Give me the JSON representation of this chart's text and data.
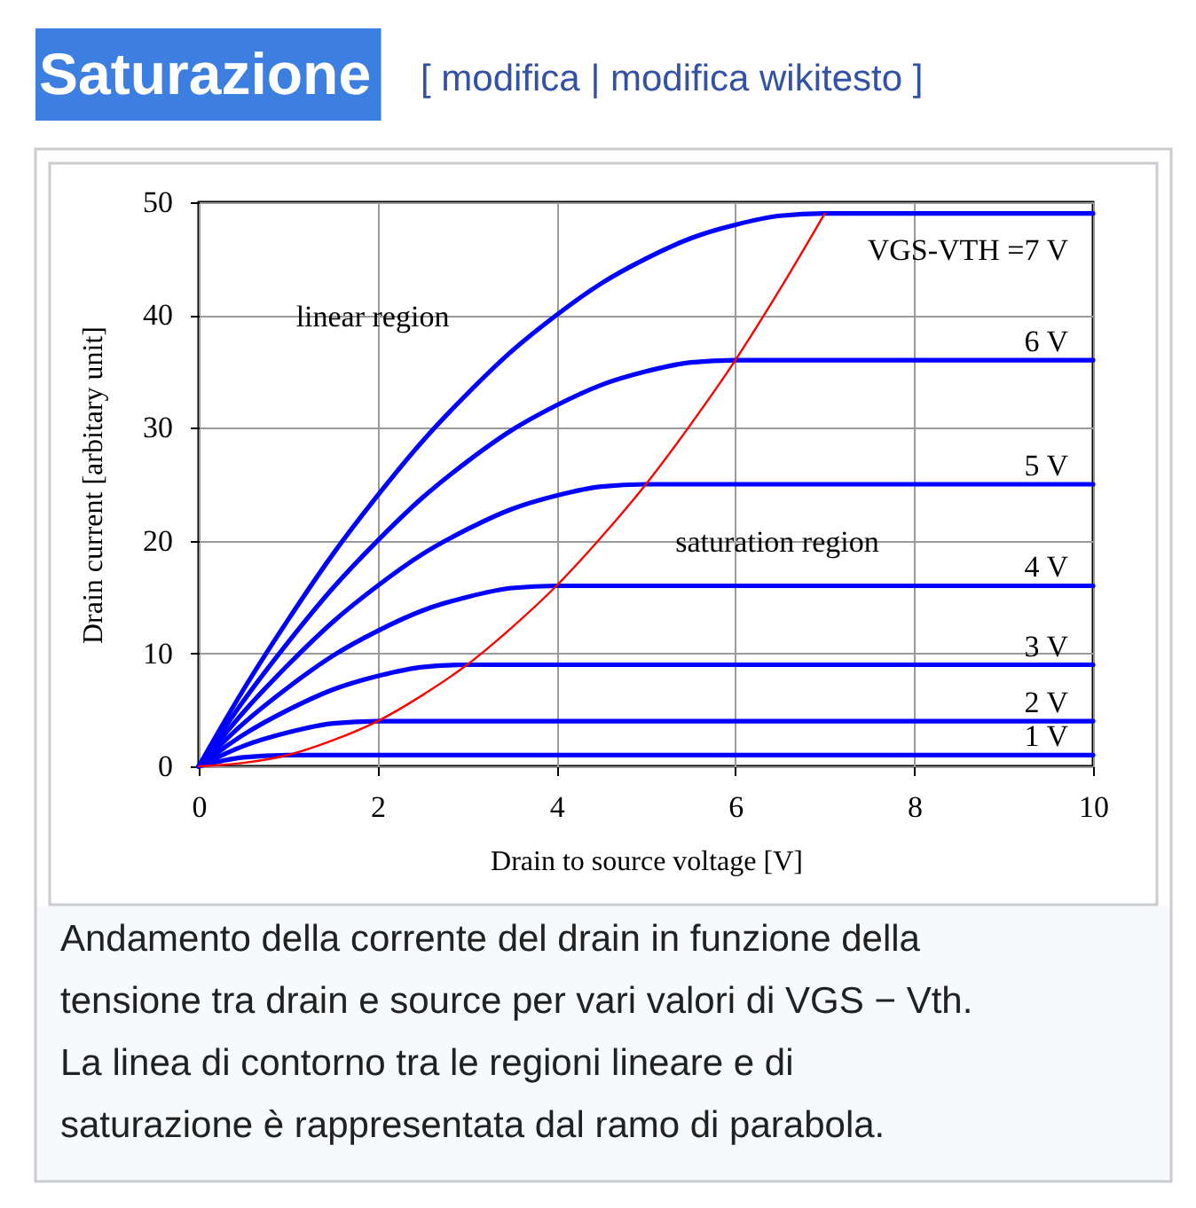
{
  "chart_data": {
    "type": "line",
    "title": "Saturazione",
    "subtitle": "[ modifica | modifica wikitesto ]",
    "xlabel": "Drain to source voltage [V]",
    "ylabel": "Drain current [arbitary unit]",
    "xlim": [
      0,
      10
    ],
    "ylim": [
      0,
      50
    ],
    "xticks": [
      0,
      2,
      4,
      6,
      8,
      10
    ],
    "yticks": [
      0,
      10,
      20,
      30,
      40,
      50
    ],
    "grid": true,
    "series": [
      {
        "name": "VGS-VTH =7 V",
        "color": "#0000ff",
        "x": [
          0,
          0.5,
          1,
          1.5,
          2,
          2.5,
          3,
          3.5,
          4,
          4.5,
          5,
          5.5,
          6,
          6.5,
          7,
          10
        ],
        "values": [
          0,
          6.8,
          13,
          18.8,
          24,
          28.8,
          33,
          36.8,
          40,
          42.8,
          45,
          46.8,
          48,
          48.8,
          49,
          49
        ]
      },
      {
        "name": "6 V",
        "color": "#0000ff",
        "x": [
          0,
          0.5,
          1,
          1.5,
          2,
          2.5,
          3,
          3.5,
          4,
          4.5,
          5,
          5.5,
          6,
          10
        ],
        "values": [
          0,
          5.8,
          11,
          15.8,
          20,
          23.8,
          27,
          29.8,
          32,
          33.8,
          35,
          35.8,
          36,
          36
        ]
      },
      {
        "name": "5 V",
        "color": "#0000ff",
        "x": [
          0,
          0.5,
          1,
          1.5,
          2,
          2.5,
          3,
          3.5,
          4,
          4.5,
          5,
          10
        ],
        "values": [
          0,
          4.8,
          9,
          12.8,
          16,
          18.8,
          21,
          22.8,
          24,
          24.8,
          25,
          25
        ]
      },
      {
        "name": "4 V",
        "color": "#0000ff",
        "x": [
          0,
          0.5,
          1,
          1.5,
          2,
          2.5,
          3,
          3.5,
          4,
          10
        ],
        "values": [
          0,
          3.8,
          7,
          9.8,
          12,
          13.8,
          15,
          15.8,
          16,
          16
        ]
      },
      {
        "name": "3 V",
        "color": "#0000ff",
        "x": [
          0,
          0.5,
          1,
          1.5,
          2,
          2.5,
          3,
          10
        ],
        "values": [
          0,
          2.8,
          5,
          6.8,
          8,
          8.8,
          9,
          9
        ]
      },
      {
        "name": "2 V",
        "color": "#0000ff",
        "x": [
          0,
          0.5,
          1,
          1.5,
          2,
          10
        ],
        "values": [
          0,
          1.8,
          3,
          3.8,
          4,
          4
        ]
      },
      {
        "name": "1 V",
        "color": "#0000ff",
        "x": [
          0,
          0.5,
          1,
          10
        ],
        "values": [
          0,
          0.8,
          1,
          1
        ]
      },
      {
        "color": "#ff0000",
        "x": [
          0,
          0.5,
          1,
          1.5,
          2,
          2.5,
          3,
          3.5,
          4,
          4.5,
          5,
          5.5,
          6,
          6.5,
          7
        ],
        "values": [
          0,
          0.3,
          1,
          2.3,
          4,
          6.3,
          9,
          12.3,
          16,
          20.3,
          25,
          30.3,
          36,
          42.3,
          49
        ]
      }
    ],
    "annotations": [
      "linear region",
      "saturation region",
      "Andamento della corrente del drain in funzione della tensione tra drain e source per vari valori di VGS − Vth. La linea di contorno tra le regioni lineare e di saturazione è rappresentata dal ramo di parabola."
    ]
  }
}
